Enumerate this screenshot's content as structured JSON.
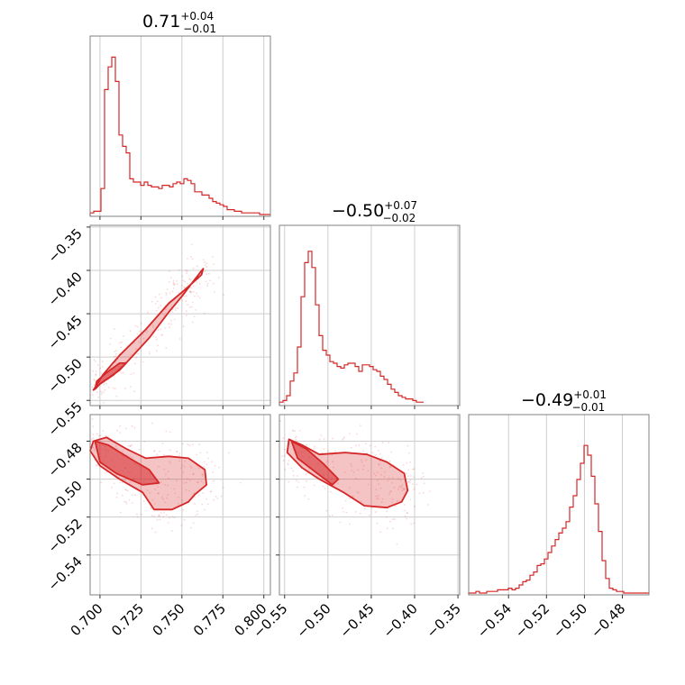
{
  "chart_data": {
    "type": "corner",
    "color": "#d62728",
    "grid": true,
    "panels": [
      {
        "kind": "hist",
        "param": 0,
        "title": {
          "value": "0.71",
          "plus": "+0.04",
          "minus": "−0.01"
        },
        "xlim": [
          0.694,
          0.804
        ],
        "xticks": [
          0.7,
          0.725,
          0.75,
          0.775,
          0.8
        ],
        "xtick_labels": [
          "0.700",
          "0.725",
          "0.750",
          "0.775",
          "0.800"
        ],
        "bin_start": 0.694,
        "bin_width": 0.0022,
        "heights": [
          0.01,
          0.02,
          0.02,
          0.16,
          0.77,
          0.91,
          0.97,
          0.82,
          0.49,
          0.42,
          0.38,
          0.22,
          0.2,
          0.2,
          0.18,
          0.2,
          0.18,
          0.17,
          0.17,
          0.16,
          0.18,
          0.18,
          0.17,
          0.19,
          0.2,
          0.19,
          0.22,
          0.21,
          0.19,
          0.14,
          0.14,
          0.12,
          0.12,
          0.1,
          0.08,
          0.07,
          0.06,
          0.05,
          0.03,
          0.03,
          0.02,
          0.02,
          0.01,
          0.01,
          0.01,
          0.01,
          0.01,
          0.0,
          0.0,
          0.0
        ]
      },
      {
        "kind": "hist",
        "param": 1,
        "title": {
          "value": "−0.50",
          "plus": "+0.07",
          "minus": "−0.02"
        },
        "xlim": [
          -0.556,
          -0.348
        ],
        "xticks": [
          -0.55,
          -0.5,
          -0.45,
          -0.4,
          -0.35
        ],
        "xtick_labels": [
          "−0.55",
          "−0.50",
          "−0.45",
          "−0.40",
          "−0.35"
        ],
        "bin_start": -0.556,
        "bin_width": 0.00416,
        "heights": [
          0.01,
          0.02,
          0.05,
          0.14,
          0.19,
          0.35,
          0.66,
          0.87,
          0.94,
          0.84,
          0.61,
          0.42,
          0.33,
          0.3,
          0.26,
          0.25,
          0.23,
          0.22,
          0.24,
          0.25,
          0.25,
          0.23,
          0.2,
          0.24,
          0.24,
          0.23,
          0.21,
          0.2,
          0.17,
          0.15,
          0.12,
          0.09,
          0.07,
          0.05,
          0.04,
          0.03,
          0.03,
          0.02,
          0.01,
          0.01
        ]
      },
      {
        "kind": "hist",
        "param": 2,
        "title": {
          "value": "−0.49",
          "plus": "+0.01",
          "minus": "−0.01"
        },
        "xlim": [
          -0.561,
          -0.466
        ],
        "xticks": [
          -0.54,
          -0.52,
          -0.5,
          -0.48
        ],
        "xtick_labels": [
          "−0.54",
          "−0.52",
          "−0.50",
          "−0.48"
        ],
        "bin_start": -0.561,
        "bin_width": 0.0019,
        "heights": [
          0.0,
          0.0,
          0.01,
          0.0,
          0.0,
          0.01,
          0.01,
          0.01,
          0.02,
          0.02,
          0.02,
          0.03,
          0.02,
          0.03,
          0.05,
          0.07,
          0.08,
          0.11,
          0.13,
          0.17,
          0.18,
          0.21,
          0.25,
          0.29,
          0.33,
          0.37,
          0.4,
          0.44,
          0.53,
          0.6,
          0.7,
          0.8,
          0.91,
          0.85,
          0.72,
          0.55,
          0.38,
          0.2,
          0.09,
          0.03,
          0.02,
          0.01,
          0.01,
          0.0,
          0.0,
          0.0,
          0.0,
          0.0,
          0.0,
          0.0
        ]
      },
      {
        "kind": "2d",
        "x_param": 0,
        "y_param": 1,
        "xlim": [
          0.694,
          0.804
        ],
        "ylim": [
          -0.556,
          -0.348
        ],
        "yticks": [
          -0.55,
          -0.5,
          -0.45,
          -0.4,
          -0.35
        ],
        "ytick_labels": [
          "−0.55",
          "−0.50",
          "−0.45",
          "−0.40",
          "−0.35"
        ],
        "outer_contour": [
          [
            0.696,
            -0.538
          ],
          [
            0.7,
            -0.531
          ],
          [
            0.712,
            -0.515
          ],
          [
            0.73,
            -0.478
          ],
          [
            0.742,
            -0.448
          ],
          [
            0.75,
            -0.43
          ],
          [
            0.756,
            -0.415
          ],
          [
            0.763,
            -0.398
          ],
          [
            0.762,
            -0.405
          ],
          [
            0.752,
            -0.422
          ],
          [
            0.742,
            -0.438
          ],
          [
            0.728,
            -0.468
          ],
          [
            0.712,
            -0.498
          ],
          [
            0.702,
            -0.52
          ],
          [
            0.697,
            -0.535
          ]
        ],
        "inner_contour": [
          [
            0.697,
            -0.537
          ],
          [
            0.7,
            -0.531
          ],
          [
            0.708,
            -0.521
          ],
          [
            0.716,
            -0.507
          ],
          [
            0.712,
            -0.507
          ],
          [
            0.704,
            -0.518
          ],
          [
            0.698,
            -0.528
          ]
        ]
      },
      {
        "kind": "2d",
        "x_param": 0,
        "y_param": 2,
        "xlim": [
          0.694,
          0.804
        ],
        "ylim": [
          -0.561,
          -0.466
        ],
        "yticks": [
          -0.54,
          -0.52,
          -0.5,
          -0.48
        ],
        "ytick_labels": [
          "−0.54",
          "−0.52",
          "−0.50",
          "−0.48"
        ],
        "outer_contour": [
          [
            0.696,
            -0.48
          ],
          [
            0.704,
            -0.478
          ],
          [
            0.716,
            -0.484
          ],
          [
            0.728,
            -0.489
          ],
          [
            0.742,
            -0.488
          ],
          [
            0.754,
            -0.489
          ],
          [
            0.764,
            -0.495
          ],
          [
            0.765,
            -0.503
          ],
          [
            0.758,
            -0.508
          ],
          [
            0.754,
            -0.512
          ],
          [
            0.744,
            -0.516
          ],
          [
            0.733,
            -0.516
          ],
          [
            0.726,
            -0.507
          ],
          [
            0.712,
            -0.5
          ],
          [
            0.7,
            -0.493
          ],
          [
            0.694,
            -0.485
          ]
        ],
        "inner_contour": [
          [
            0.697,
            -0.48
          ],
          [
            0.705,
            -0.482
          ],
          [
            0.718,
            -0.489
          ],
          [
            0.73,
            -0.495
          ],
          [
            0.736,
            -0.502
          ],
          [
            0.726,
            -0.503
          ],
          [
            0.71,
            -0.497
          ],
          [
            0.7,
            -0.491
          ]
        ]
      },
      {
        "kind": "2d",
        "x_param": 1,
        "y_param": 2,
        "xlim": [
          -0.556,
          -0.348
        ],
        "ylim": [
          -0.561,
          -0.466
        ],
        "outer_contour": [
          [
            -0.545,
            -0.479
          ],
          [
            -0.53,
            -0.482
          ],
          [
            -0.51,
            -0.487
          ],
          [
            -0.48,
            -0.486
          ],
          [
            -0.455,
            -0.487
          ],
          [
            -0.432,
            -0.491
          ],
          [
            -0.412,
            -0.497
          ],
          [
            -0.408,
            -0.506
          ],
          [
            -0.415,
            -0.512
          ],
          [
            -0.432,
            -0.515
          ],
          [
            -0.458,
            -0.514
          ],
          [
            -0.482,
            -0.507
          ],
          [
            -0.51,
            -0.5
          ],
          [
            -0.53,
            -0.494
          ],
          [
            -0.547,
            -0.486
          ]
        ],
        "inner_contour": [
          [
            -0.542,
            -0.48
          ],
          [
            -0.525,
            -0.484
          ],
          [
            -0.505,
            -0.492
          ],
          [
            -0.488,
            -0.5
          ],
          [
            -0.495,
            -0.503
          ],
          [
            -0.515,
            -0.496
          ],
          [
            -0.535,
            -0.489
          ]
        ]
      }
    ]
  }
}
